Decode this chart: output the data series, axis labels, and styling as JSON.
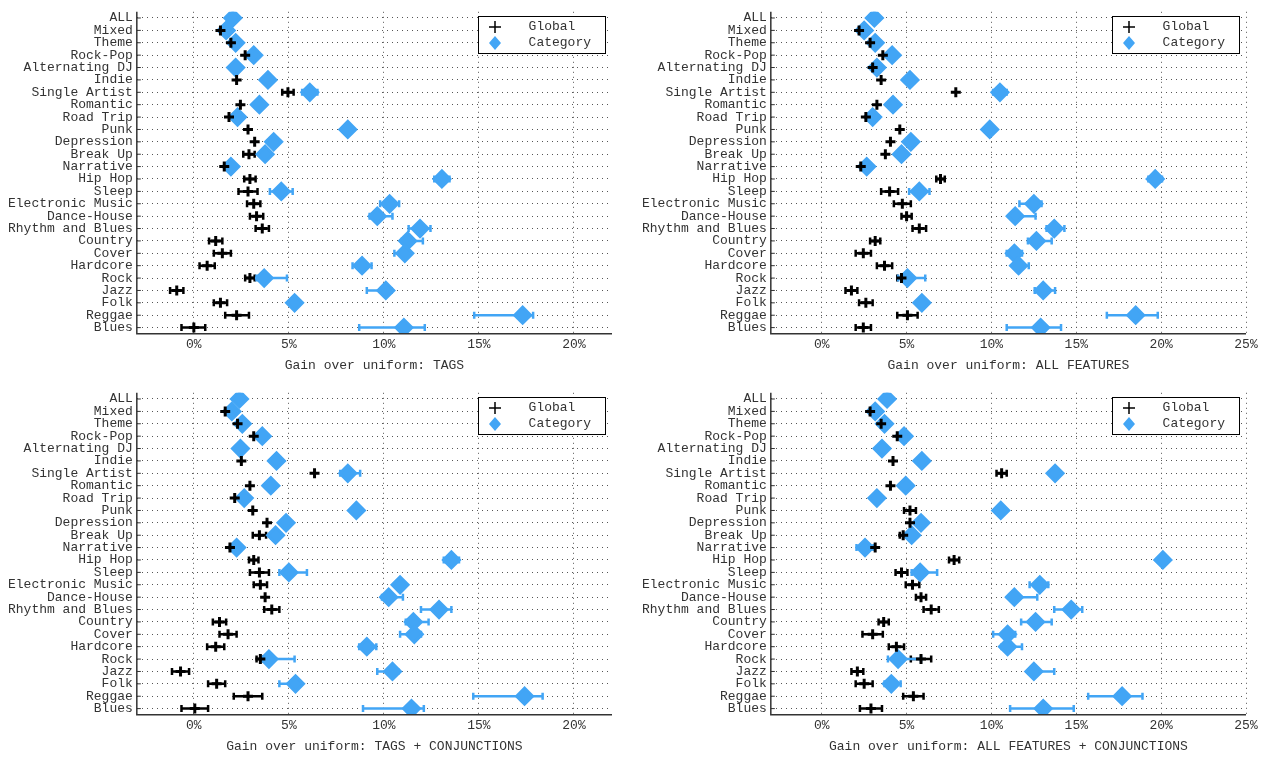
{
  "chart_data": [
    {
      "type": "scatter",
      "orientation": "horizontal",
      "xlabel": "Gain over uniform: TAGS",
      "categories": [
        "ALL",
        "Mixed",
        "Theme",
        "Rock-Pop",
        "Alternating DJ",
        "Indie",
        "Single Artist",
        "Romantic",
        "Road Trip",
        "Punk",
        "Depression",
        "Break Up",
        "Narrative",
        "Hip Hop",
        "Sleep",
        "Electronic Music",
        "Dance-House",
        "Rhythm and Blues",
        "Country",
        "Cover",
        "Hardcore",
        "Rock",
        "Jazz",
        "Folk",
        "Reggae",
        "Blues"
      ],
      "xlim": [
        -3,
        22
      ],
      "xticks": [
        {
          "value": 0,
          "label": "0%"
        },
        {
          "value": 5,
          "label": "5%"
        },
        {
          "value": 10,
          "label": "10%"
        },
        {
          "value": 15,
          "label": "15%"
        },
        {
          "value": 20,
          "label": "20%"
        }
      ],
      "grid": true,
      "legend": "top right",
      "series": [
        {
          "name": "Global",
          "color": "#000000",
          "marker": "cross",
          "values": [
            null,
            1.4,
            1.95,
            2.7,
            null,
            2.25,
            4.95,
            2.45,
            1.85,
            2.85,
            3.2,
            2.9,
            1.6,
            2.95,
            2.85,
            3.15,
            3.3,
            3.6,
            1.15,
            1.5,
            0.7,
            2.95,
            -0.9,
            1.4,
            2.25,
            0.0
          ],
          "errors": [
            null,
            null,
            null,
            null,
            null,
            null,
            0.3,
            null,
            null,
            null,
            null,
            0.3,
            null,
            0.3,
            0.5,
            0.35,
            0.35,
            0.35,
            0.35,
            0.45,
            0.4,
            0.25,
            0.35,
            0.35,
            [
              1.65,
              2.9
            ],
            [
              -0.65,
              0.6
            ]
          ]
        },
        {
          "name": "Category",
          "color": "#42a5f5",
          "marker": "diamond",
          "values": [
            2.05,
            1.7,
            2.2,
            3.15,
            2.2,
            3.9,
            6.1,
            3.45,
            2.3,
            8.1,
            4.2,
            3.75,
            1.95,
            13.05,
            4.6,
            10.3,
            9.65,
            11.9,
            11.25,
            11.1,
            8.85,
            3.7,
            10.1,
            5.3,
            17.3,
            11.05
          ],
          "errors": [
            null,
            null,
            null,
            null,
            null,
            null,
            0.4,
            null,
            null,
            null,
            null,
            null,
            null,
            0.4,
            0.6,
            0.5,
            [
              9.25,
              10.45
            ],
            [
              11.3,
              12.45
            ],
            [
              10.95,
              12.05
            ],
            [
              10.55,
              11.35
            ],
            0.5,
            [
              3.3,
              4.9
            ],
            [
              9.1,
              10.4
            ],
            null,
            [
              14.75,
              17.85
            ],
            [
              8.7,
              12.15
            ]
          ]
        }
      ]
    },
    {
      "type": "scatter",
      "orientation": "horizontal",
      "xlabel": "Gain over uniform: ALL FEATURES",
      "categories": [
        "ALL",
        "Mixed",
        "Theme",
        "Rock-Pop",
        "Alternating DJ",
        "Indie",
        "Single Artist",
        "Romantic",
        "Road Trip",
        "Punk",
        "Depression",
        "Break Up",
        "Narrative",
        "Hip Hop",
        "Sleep",
        "Electronic Music",
        "Dance-House",
        "Rhythm and Blues",
        "Country",
        "Cover",
        "Hardcore",
        "Rock",
        "Jazz",
        "Folk",
        "Reggae",
        "Blues"
      ],
      "xlim": [
        -3,
        25
      ],
      "xticks": [
        {
          "value": 0,
          "label": "0%"
        },
        {
          "value": 5,
          "label": "5%"
        },
        {
          "value": 10,
          "label": "10%"
        },
        {
          "value": 15,
          "label": "15%"
        },
        {
          "value": 20,
          "label": "20%"
        },
        {
          "value": 25,
          "label": "25%"
        }
      ],
      "grid": true,
      "legend": "top right",
      "series": [
        {
          "name": "Global",
          "color": "#000000",
          "marker": "cross",
          "values": [
            null,
            2.2,
            2.85,
            3.6,
            3.0,
            3.5,
            7.9,
            3.25,
            2.6,
            4.6,
            4.05,
            3.75,
            2.3,
            7.0,
            4.0,
            4.75,
            5.0,
            5.75,
            3.15,
            2.45,
            3.7,
            4.7,
            1.75,
            2.6,
            5.05,
            2.45
          ],
          "errors": [
            null,
            null,
            null,
            null,
            null,
            null,
            null,
            null,
            null,
            null,
            null,
            null,
            null,
            0.25,
            0.5,
            0.5,
            0.3,
            0.4,
            0.3,
            0.45,
            0.45,
            [
              4.45,
              5.0
            ],
            0.35,
            0.4,
            0.6,
            0.45
          ]
        },
        {
          "name": "Category",
          "color": "#42a5f5",
          "marker": "diamond",
          "values": [
            3.1,
            2.5,
            3.15,
            4.15,
            3.25,
            5.2,
            10.5,
            4.2,
            3.0,
            9.9,
            5.25,
            4.7,
            2.65,
            19.65,
            5.75,
            12.5,
            11.4,
            13.7,
            12.65,
            11.35,
            11.6,
            5.05,
            13.05,
            5.9,
            18.5,
            12.9
          ],
          "errors": [
            null,
            null,
            null,
            null,
            null,
            null,
            0.4,
            null,
            null,
            null,
            null,
            null,
            null,
            0.4,
            0.6,
            [
              11.65,
              12.95
            ],
            [
              11.15,
              12.6
            ],
            [
              13.25,
              14.3
            ],
            [
              12.15,
              13.55
            ],
            0.45,
            [
              11.35,
              12.2
            ],
            [
              4.5,
              6.1
            ],
            [
              12.55,
              13.75
            ],
            null,
            [
              16.8,
              19.8
            ],
            [
              10.9,
              14.1
            ]
          ]
        }
      ]
    },
    {
      "type": "scatter",
      "orientation": "horizontal",
      "xlabel": "Gain over uniform: TAGS + CONJUNCTIONS",
      "categories": [
        "ALL",
        "Mixed",
        "Theme",
        "Rock-Pop",
        "Alternating DJ",
        "Indie",
        "Single Artist",
        "Romantic",
        "Road Trip",
        "Punk",
        "Depression",
        "Break Up",
        "Narrative",
        "Hip Hop",
        "Sleep",
        "Electronic Music",
        "Dance-House",
        "Rhythm and Blues",
        "Country",
        "Cover",
        "Hardcore",
        "Rock",
        "Jazz",
        "Folk",
        "Reggae",
        "Blues"
      ],
      "xlim": [
        -3,
        22
      ],
      "xticks": [
        {
          "value": 0,
          "label": "0%"
        },
        {
          "value": 5,
          "label": "5%"
        },
        {
          "value": 10,
          "label": "10%"
        },
        {
          "value": 15,
          "label": "15%"
        },
        {
          "value": 20,
          "label": "20%"
        }
      ],
      "grid": true,
      "legend": "top right",
      "series": [
        {
          "name": "Global",
          "color": "#000000",
          "marker": "cross",
          "values": [
            null,
            1.65,
            2.3,
            3.15,
            null,
            2.5,
            6.35,
            2.95,
            2.15,
            3.1,
            3.85,
            3.45,
            1.9,
            3.15,
            3.45,
            3.5,
            3.75,
            4.1,
            1.35,
            1.8,
            1.15,
            3.5,
            -0.7,
            1.2,
            2.85,
            0.05
          ],
          "errors": [
            null,
            null,
            null,
            null,
            null,
            null,
            null,
            null,
            null,
            null,
            null,
            0.35,
            null,
            0.25,
            0.5,
            0.35,
            null,
            0.4,
            0.35,
            0.45,
            0.45,
            [
              3.3,
              3.65
            ],
            0.45,
            0.45,
            0.75,
            0.7
          ]
        },
        {
          "name": "Category",
          "color": "#42a5f5",
          "marker": "diamond",
          "values": [
            2.4,
            2.0,
            2.55,
            3.6,
            2.45,
            4.35,
            8.1,
            4.05,
            2.65,
            8.55,
            4.85,
            4.3,
            2.25,
            13.55,
            5.0,
            10.85,
            10.25,
            12.9,
            11.55,
            11.6,
            9.1,
            3.95,
            10.45,
            5.35,
            17.4,
            11.45
          ],
          "errors": [
            null,
            null,
            null,
            null,
            null,
            null,
            [
              7.7,
              8.75
            ],
            null,
            null,
            null,
            null,
            null,
            null,
            0.4,
            [
              4.5,
              5.95
            ],
            null,
            [
              9.9,
              11.0
            ],
            [
              11.95,
              13.55
            ],
            [
              11.15,
              12.35
            ],
            [
              10.85,
              11.95
            ],
            [
              8.7,
              9.6
            ],
            [
              3.55,
              5.3
            ],
            [
              9.65,
              10.75
            ],
            [
              4.5,
              5.6
            ],
            [
              14.7,
              18.35
            ],
            [
              8.9,
              12.1
            ]
          ]
        }
      ]
    },
    {
      "type": "scatter",
      "orientation": "horizontal",
      "xlabel": "Gain over uniform: ALL FEATURES + CONJUNCTIONS",
      "categories": [
        "ALL",
        "Mixed",
        "Theme",
        "Rock-Pop",
        "Alternating DJ",
        "Indie",
        "Single Artist",
        "Romantic",
        "Road Trip",
        "Punk",
        "Depression",
        "Break Up",
        "Narrative",
        "Hip Hop",
        "Sleep",
        "Electronic Music",
        "Dance-House",
        "Rhythm and Blues",
        "Country",
        "Cover",
        "Hardcore",
        "Rock",
        "Jazz",
        "Folk",
        "Reggae",
        "Blues"
      ],
      "xlim": [
        -3,
        25
      ],
      "xticks": [
        {
          "value": 0,
          "label": "0%"
        },
        {
          "value": 5,
          "label": "5%"
        },
        {
          "value": 10,
          "label": "10%"
        },
        {
          "value": 15,
          "label": "15%"
        },
        {
          "value": 20,
          "label": "20%"
        },
        {
          "value": 25,
          "label": "25%"
        }
      ],
      "grid": true,
      "legend": "top right",
      "series": [
        {
          "name": "Global",
          "color": "#000000",
          "marker": "cross",
          "values": [
            null,
            2.85,
            3.5,
            4.45,
            null,
            4.2,
            10.6,
            4.05,
            null,
            5.2,
            5.2,
            4.8,
            3.15,
            7.8,
            4.7,
            5.35,
            5.85,
            6.45,
            3.65,
            3.0,
            4.4,
            5.85,
            2.1,
            2.5,
            5.4,
            2.9
          ],
          "errors": [
            null,
            null,
            null,
            null,
            null,
            null,
            0.3,
            null,
            null,
            0.35,
            null,
            [
              4.6,
              5.05
            ],
            null,
            0.3,
            0.35,
            0.4,
            0.3,
            [
              6.0,
              6.9
            ],
            0.3,
            0.6,
            0.45,
            [
              5.25,
              6.45
            ],
            0.35,
            0.5,
            0.6,
            0.65
          ]
        },
        {
          "name": "Category",
          "color": "#42a5f5",
          "marker": "diamond",
          "values": [
            3.85,
            3.15,
            3.7,
            4.85,
            3.55,
            5.9,
            13.75,
            4.95,
            3.25,
            10.55,
            5.85,
            5.3,
            2.55,
            20.1,
            5.8,
            12.85,
            11.35,
            14.7,
            12.6,
            10.95,
            10.95,
            4.5,
            12.5,
            4.1,
            17.7,
            13.05
          ],
          "errors": [
            null,
            null,
            null,
            null,
            null,
            null,
            null,
            null,
            null,
            null,
            null,
            null,
            [
              2.05,
              3.05
            ],
            null,
            [
              5.3,
              6.8
            ],
            [
              12.25,
              13.35
            ],
            [
              11.35,
              12.7
            ],
            [
              13.7,
              15.35
            ],
            [
              11.75,
              13.55
            ],
            [
              10.1,
              11.4
            ],
            [
              10.6,
              11.8
            ],
            [
              3.9,
              5.85
            ],
            [
              12.2,
              13.7
            ],
            [
              3.7,
              4.65
            ],
            [
              15.7,
              18.9
            ],
            [
              11.1,
              14.85
            ]
          ]
        }
      ]
    }
  ]
}
